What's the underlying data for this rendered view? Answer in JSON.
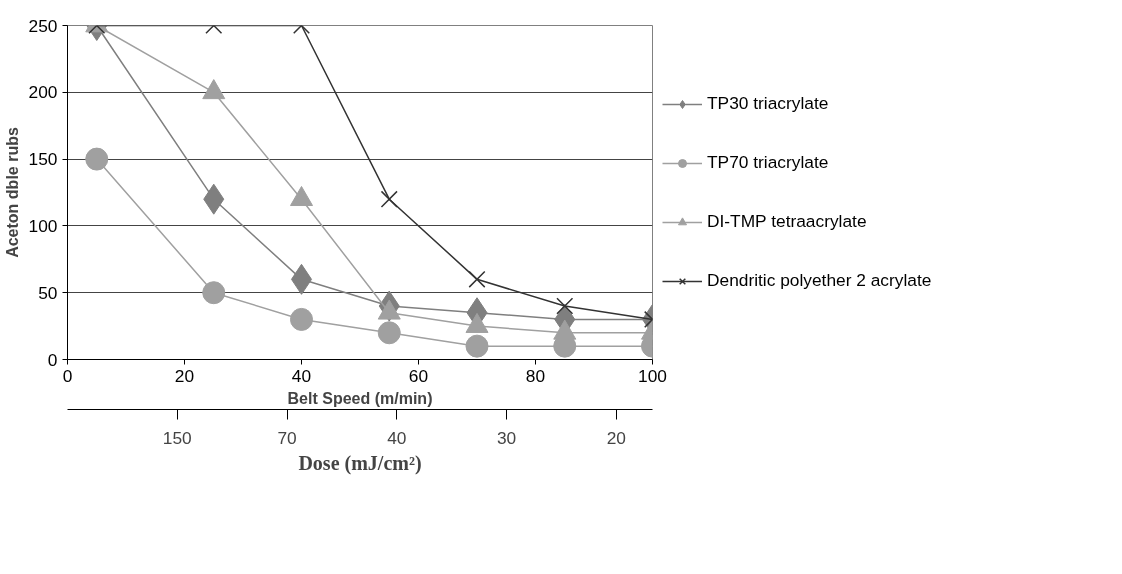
{
  "chart_data": {
    "type": "line",
    "xlabel": "Belt Speed (m/min)",
    "ylabel": "Aceton dble rubs",
    "x2label": "Dose (mJ/cm²)",
    "x": [
      5,
      25,
      40,
      55,
      70,
      85,
      100
    ],
    "series": [
      {
        "name": "TP30 triacrylate",
        "color": "#7f7f7f",
        "marker": "diamond",
        "values": [
          250,
          120,
          60,
          40,
          35,
          30,
          30
        ]
      },
      {
        "name": "TP70 triacrylate",
        "color": "#a0a0a0",
        "marker": "circle",
        "values": [
          150,
          50,
          30,
          20,
          10,
          10,
          10
        ]
      },
      {
        "name": "DI-TMP tetraacrylate",
        "color": "#a0a0a0",
        "marker": "triangle",
        "values": [
          250,
          200,
          120,
          35,
          25,
          20,
          20
        ]
      },
      {
        "name": "Dendritic polyether 2 acrylate",
        "color": "#333333",
        "marker": "cross",
        "values": [
          250,
          250,
          250,
          120,
          60,
          40,
          30
        ]
      }
    ],
    "xlim": [
      0,
      100
    ],
    "xticks": [
      0,
      20,
      40,
      60,
      80,
      100
    ],
    "ylim": [
      0,
      250
    ],
    "yticks": [
      0,
      50,
      100,
      150,
      200,
      250
    ],
    "annotations": [
      "150",
      "70",
      "40",
      "30",
      "20"
    ],
    "grid": "y",
    "legend": "right"
  }
}
